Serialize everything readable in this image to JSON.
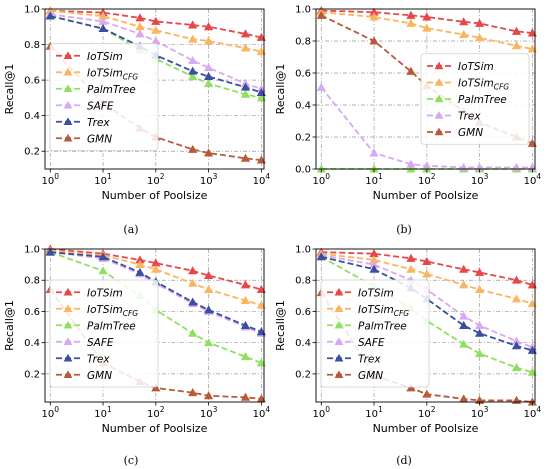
{
  "figure": {
    "xlabel": "Number of Poolsize",
    "ylabel": "Recall@1"
  },
  "chart_data": [
    {
      "panel_label": "(a)",
      "type": "line",
      "xscale": "log",
      "x": [
        1,
        10,
        50,
        100,
        500,
        1000,
        5000,
        10000
      ],
      "xticks": [
        {
          "value": 1,
          "base": "10",
          "exp": "0"
        },
        {
          "value": 10,
          "base": "10",
          "exp": "1"
        },
        {
          "value": 100,
          "base": "10",
          "exp": "2"
        },
        {
          "value": 1000,
          "base": "10",
          "exp": "3"
        },
        {
          "value": 10000,
          "base": "10",
          "exp": "4"
        }
      ],
      "ylim": [
        0.1,
        1.0
      ],
      "yticks": [
        "0.2",
        "0.4",
        "0.6",
        "0.8",
        "1.0"
      ],
      "grid": true,
      "legend_position": "center-left",
      "series": [
        {
          "name": "IoTSim",
          "sub": "",
          "color": "#e8474a",
          "marker": "triangle-up",
          "values": [
            0.99,
            0.98,
            0.95,
            0.93,
            0.91,
            0.9,
            0.86,
            0.84
          ]
        },
        {
          "name": "IoTSim",
          "sub": "CFG",
          "color": "#fbb55f",
          "marker": "triangle-up",
          "values": [
            0.99,
            0.96,
            0.9,
            0.88,
            0.83,
            0.82,
            0.78,
            0.76
          ]
        },
        {
          "name": "PalmTree",
          "sub": "",
          "color": "#90e060",
          "marker": "triangle-up",
          "values": [
            0.96,
            0.89,
            0.77,
            0.72,
            0.62,
            0.58,
            0.52,
            0.5
          ]
        },
        {
          "name": "SAFE",
          "sub": "",
          "color": "#d8a8f5",
          "marker": "triangle-up",
          "values": [
            0.97,
            0.93,
            0.86,
            0.82,
            0.71,
            0.67,
            0.58,
            0.55
          ]
        },
        {
          "name": "Trex",
          "sub": "",
          "color": "#3a4fa0",
          "marker": "triangle-up",
          "values": [
            0.96,
            0.89,
            0.79,
            0.74,
            0.65,
            0.62,
            0.56,
            0.53
          ]
        },
        {
          "name": "GMN",
          "sub": "",
          "color": "#b85a3a",
          "marker": "triangle-up",
          "values": [
            0.79,
            0.47,
            0.33,
            0.28,
            0.21,
            0.19,
            0.16,
            0.15
          ]
        }
      ]
    },
    {
      "panel_label": "(b)",
      "type": "line",
      "xscale": "log",
      "x": [
        1,
        10,
        50,
        100,
        500,
        1000,
        5000,
        10000
      ],
      "xticks": [
        {
          "value": 1,
          "base": "10",
          "exp": "0"
        },
        {
          "value": 10,
          "base": "10",
          "exp": "1"
        },
        {
          "value": 100,
          "base": "10",
          "exp": "2"
        },
        {
          "value": 1000,
          "base": "10",
          "exp": "3"
        },
        {
          "value": 10000,
          "base": "10",
          "exp": "4"
        }
      ],
      "ylim": [
        0.0,
        1.0
      ],
      "yticks": [
        "0.0",
        "0.2",
        "0.4",
        "0.6",
        "0.8",
        "1.0"
      ],
      "grid": true,
      "legend_position": "center-right",
      "series": [
        {
          "name": "IoTSim",
          "sub": "",
          "color": "#e8474a",
          "marker": "triangle-up",
          "values": [
            0.99,
            0.98,
            0.96,
            0.95,
            0.92,
            0.91,
            0.86,
            0.85
          ]
        },
        {
          "name": "IoTSim",
          "sub": "CFG",
          "color": "#fbb55f",
          "marker": "triangle-up",
          "values": [
            0.98,
            0.95,
            0.91,
            0.88,
            0.84,
            0.82,
            0.77,
            0.75
          ]
        },
        {
          "name": "PalmTree",
          "sub": "",
          "color": "#90e060",
          "marker": "triangle-up",
          "values": [
            0.0,
            0.0,
            0.0,
            0.0,
            0.0,
            0.0,
            0.0,
            0.0
          ]
        },
        {
          "name": "Trex",
          "sub": "",
          "color": "#d8a8f5",
          "marker": "triangle-up",
          "values": [
            0.51,
            0.1,
            0.03,
            0.02,
            0.01,
            0.01,
            0.01,
            0.01
          ]
        },
        {
          "name": "GMN",
          "sub": "",
          "color": "#b85a3a",
          "marker": "triangle-up",
          "values": [
            0.96,
            0.8,
            0.61,
            0.52,
            0.36,
            0.29,
            0.2,
            0.16
          ]
        }
      ]
    },
    {
      "panel_label": "(c)",
      "type": "line",
      "xscale": "log",
      "x": [
        1,
        10,
        50,
        100,
        500,
        1000,
        5000,
        10000
      ],
      "xticks": [
        {
          "value": 1,
          "base": "10",
          "exp": "0"
        },
        {
          "value": 10,
          "base": "10",
          "exp": "1"
        },
        {
          "value": 100,
          "base": "10",
          "exp": "2"
        },
        {
          "value": 1000,
          "base": "10",
          "exp": "3"
        },
        {
          "value": 10000,
          "base": "10",
          "exp": "4"
        }
      ],
      "ylim": [
        0.02,
        1.0
      ],
      "yticks": [
        "0.2",
        "0.4",
        "0.6",
        "0.8",
        "1.0"
      ],
      "grid": true,
      "legend_position": "center-left",
      "series": [
        {
          "name": "IoTSim",
          "sub": "",
          "color": "#e8474a",
          "marker": "triangle-up",
          "values": [
            1.0,
            0.97,
            0.93,
            0.91,
            0.86,
            0.83,
            0.77,
            0.74
          ]
        },
        {
          "name": "IoTSim",
          "sub": "CFG",
          "color": "#fbb55f",
          "marker": "triangle-up",
          "values": [
            0.99,
            0.96,
            0.9,
            0.87,
            0.78,
            0.74,
            0.67,
            0.64
          ]
        },
        {
          "name": "PalmTree",
          "sub": "",
          "color": "#90e060",
          "marker": "triangle-up",
          "values": [
            0.98,
            0.86,
            0.7,
            0.61,
            0.46,
            0.4,
            0.31,
            0.27
          ]
        },
        {
          "name": "SAFE",
          "sub": "",
          "color": "#d8a8f5",
          "marker": "triangle-up",
          "values": [
            0.98,
            0.94,
            0.84,
            0.78,
            0.65,
            0.6,
            0.5,
            0.46
          ]
        },
        {
          "name": "Trex",
          "sub": "",
          "color": "#3a4fa0",
          "marker": "triangle-up",
          "values": [
            0.98,
            0.95,
            0.85,
            0.79,
            0.66,
            0.61,
            0.51,
            0.47
          ]
        },
        {
          "name": "GMN",
          "sub": "",
          "color": "#b85a3a",
          "marker": "triangle-up",
          "values": [
            0.74,
            0.27,
            0.15,
            0.11,
            0.08,
            0.06,
            0.05,
            0.04
          ]
        }
      ]
    },
    {
      "panel_label": "(d)",
      "type": "line",
      "xscale": "log",
      "x": [
        1,
        10,
        50,
        100,
        500,
        1000,
        5000,
        10000
      ],
      "xticks": [
        {
          "value": 1,
          "base": "10",
          "exp": "0"
        },
        {
          "value": 10,
          "base": "10",
          "exp": "1"
        },
        {
          "value": 100,
          "base": "10",
          "exp": "2"
        },
        {
          "value": 1000,
          "base": "10",
          "exp": "3"
        },
        {
          "value": 10000,
          "base": "10",
          "exp": "4"
        }
      ],
      "ylim": [
        0.02,
        1.0
      ],
      "yticks": [
        "0.2",
        "0.4",
        "0.6",
        "0.8",
        "1.0"
      ],
      "grid": true,
      "legend_position": "center-left",
      "series": [
        {
          "name": "IoTSim",
          "sub": "",
          "color": "#e8474a",
          "marker": "triangle-up",
          "values": [
            0.98,
            0.97,
            0.94,
            0.92,
            0.87,
            0.85,
            0.8,
            0.77
          ]
        },
        {
          "name": "IoTSim",
          "sub": "CFG",
          "color": "#fbb55f",
          "marker": "triangle-up",
          "values": [
            0.97,
            0.93,
            0.87,
            0.84,
            0.77,
            0.74,
            0.68,
            0.65
          ]
        },
        {
          "name": "PalmTree",
          "sub": "",
          "color": "#90e060",
          "marker": "triangle-up",
          "values": [
            0.95,
            0.76,
            0.62,
            0.54,
            0.39,
            0.33,
            0.24,
            0.21
          ]
        },
        {
          "name": "SAFE",
          "sub": "",
          "color": "#d8a8f5",
          "marker": "triangle-up",
          "values": [
            0.96,
            0.9,
            0.8,
            0.74,
            0.57,
            0.51,
            0.41,
            0.37
          ]
        },
        {
          "name": "Trex",
          "sub": "",
          "color": "#3a4fa0",
          "marker": "triangle-up",
          "values": [
            0.95,
            0.87,
            0.75,
            0.68,
            0.51,
            0.46,
            0.38,
            0.35
          ]
        },
        {
          "name": "GMN",
          "sub": "",
          "color": "#b85a3a",
          "marker": "triangle-up",
          "values": [
            0.72,
            0.19,
            0.11,
            0.07,
            0.04,
            0.03,
            0.03,
            0.02
          ]
        }
      ]
    }
  ]
}
